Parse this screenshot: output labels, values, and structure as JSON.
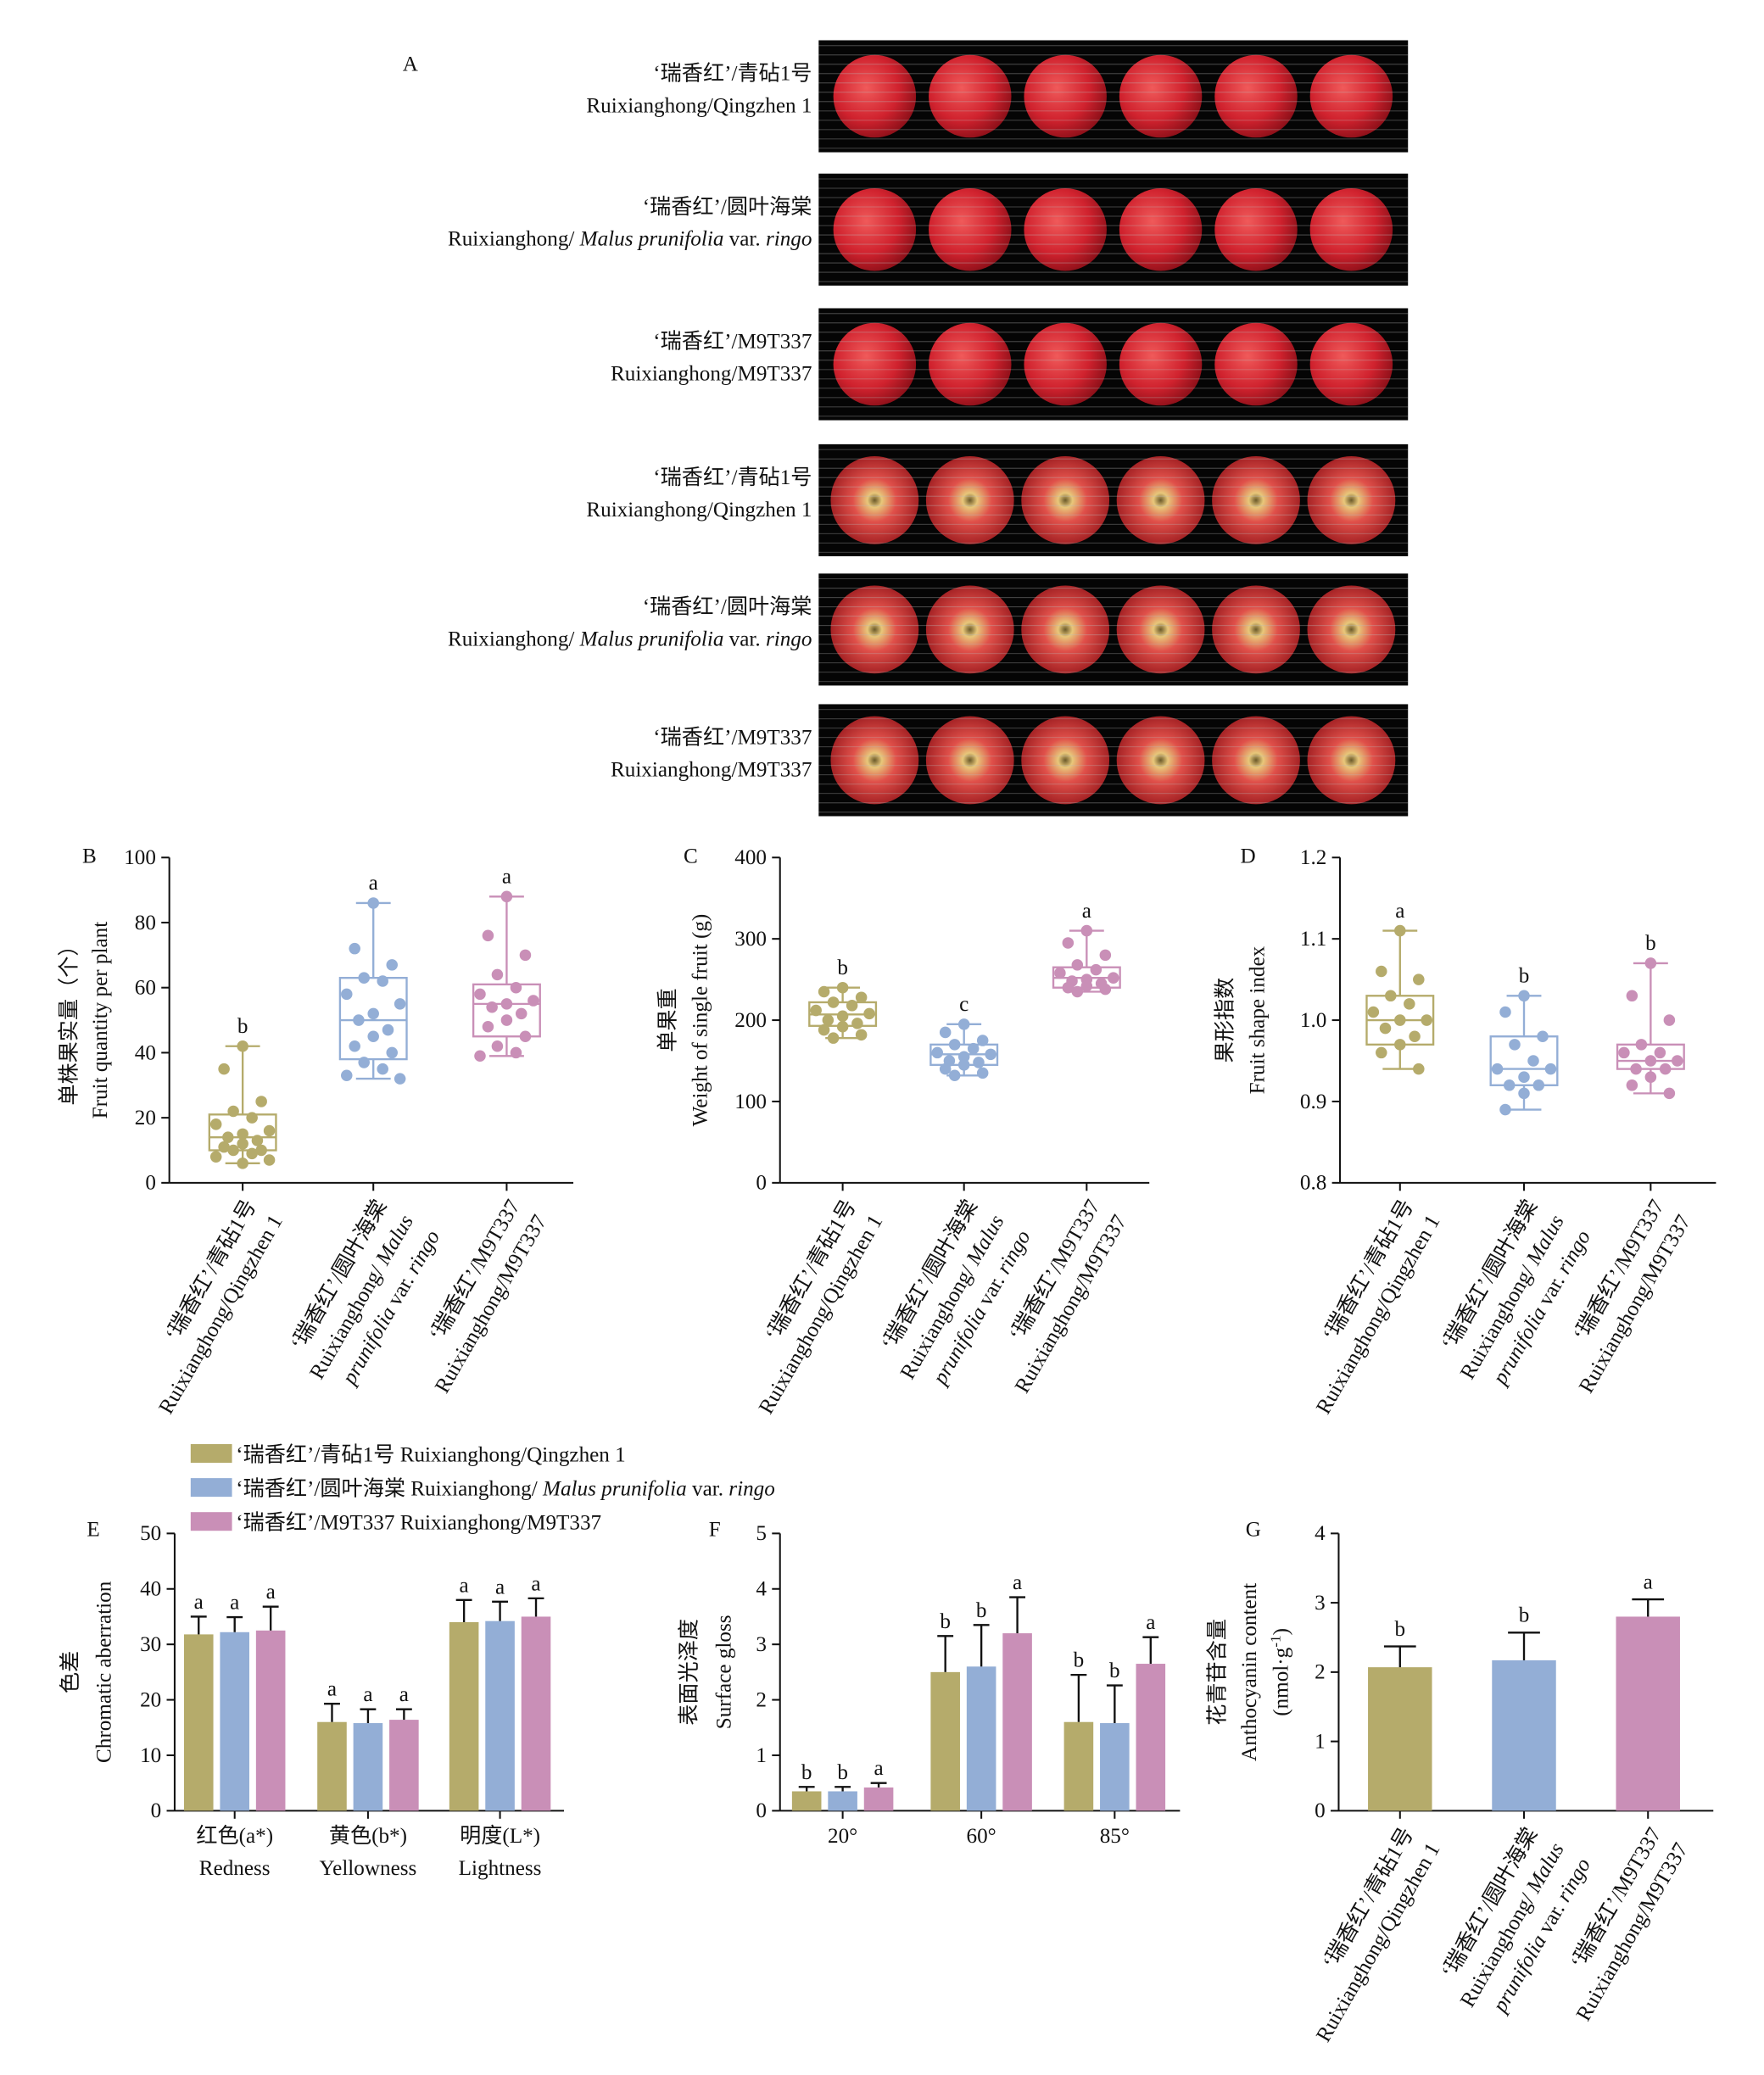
{
  "panel_a": {
    "label": "A",
    "rows": [
      {
        "line1": "‘瑞香红’/青砧1号",
        "line2": "Ruixianghong/Qingzhen 1"
      },
      {
        "line1": "‘瑞香红’/圆叶海棠",
        "line2": [
          "Ruixianghong/ ",
          "Malus prunifolia",
          " var. ",
          "ringo"
        ]
      },
      {
        "line1": "‘瑞香红’/M9T337",
        "line2": "Ruixianghong/M9T337"
      },
      {
        "line1": "‘瑞香红’/青砧1号",
        "line2": "Ruixianghong/Qingzhen 1"
      },
      {
        "line1": "‘瑞香红’/圆叶海棠",
        "line2": [
          "Ruixianghong/ ",
          "Malus prunifolia",
          " var. ",
          "ringo"
        ]
      },
      {
        "line1": "‘瑞香红’/M9T337",
        "line2": "Ruixianghong/M9T337"
      }
    ]
  },
  "chart_data": [
    {
      "type": "box",
      "panel": "B",
      "y_label": [
        "单株果实量（个）",
        "Fruit quantity per plant"
      ],
      "ylim": [
        0,
        100
      ],
      "yticks": [
        0,
        20,
        40,
        60,
        80,
        100
      ],
      "categories": [
        [
          "‘瑞香红’/青砧1号",
          "Ruixianghong/Qingzhen 1"
        ],
        [
          "‘瑞香红’/圆叶海棠",
          [
            "Ruixianghong/ ",
            "Malus"
          ],
          [
            "",
            "prunifolia",
            " var. ",
            "ringo"
          ]
        ],
        [
          "‘瑞香红’/M9T337",
          "Ruixianghong/M9T337"
        ]
      ],
      "groups": [
        {
          "color": "#b5ab6b",
          "min": 6,
          "q1": 10,
          "median": 14,
          "q3": 21,
          "max": 42,
          "letter": "b",
          "points": [
            42,
            35,
            25,
            22,
            20,
            18,
            16,
            15,
            14,
            13,
            12,
            11,
            10,
            10,
            9,
            8,
            7,
            6
          ]
        },
        {
          "color": "#93aed6",
          "min": 32,
          "q1": 38,
          "median": 50,
          "q3": 63,
          "max": 86,
          "letter": "a",
          "points": [
            86,
            72,
            67,
            63,
            62,
            58,
            55,
            52,
            50,
            47,
            45,
            42,
            40,
            37,
            35,
            33,
            32
          ]
        },
        {
          "color": "#c98fb7",
          "min": 39,
          "q1": 45,
          "median": 55,
          "q3": 61,
          "max": 88,
          "letter": "a",
          "points": [
            88,
            76,
            70,
            64,
            60,
            58,
            56,
            55,
            54,
            52,
            50,
            48,
            45,
            42,
            40,
            39
          ]
        }
      ]
    },
    {
      "type": "box",
      "panel": "C",
      "y_label": [
        "单果重",
        "Weight of single fruit (g)"
      ],
      "ylim": [
        0,
        400
      ],
      "yticks": [
        0,
        100,
        200,
        300,
        400
      ],
      "categories": [
        [
          "‘瑞香红’/青砧1号",
          "Ruixianghong/Qingzhen 1"
        ],
        [
          "‘瑞香红’/圆叶海棠",
          [
            "Ruixianghong/ ",
            "Malus"
          ],
          [
            "",
            "prunifolia",
            " var. ",
            "ringo"
          ]
        ],
        [
          "‘瑞香红’/M9T337",
          "Ruixianghong/M9T337"
        ]
      ],
      "groups": [
        {
          "color": "#b5ab6b",
          "min": 178,
          "q1": 193,
          "median": 207,
          "q3": 222,
          "max": 240,
          "letter": "b",
          "points": [
            240,
            235,
            228,
            222,
            218,
            212,
            208,
            205,
            200,
            196,
            192,
            188,
            182,
            178
          ]
        },
        {
          "color": "#93aed6",
          "min": 132,
          "q1": 145,
          "median": 158,
          "q3": 170,
          "max": 195,
          "letter": "c",
          "points": [
            195,
            185,
            175,
            170,
            165,
            160,
            158,
            155,
            150,
            148,
            145,
            140,
            135,
            132
          ]
        },
        {
          "color": "#c98fb7",
          "min": 235,
          "q1": 240,
          "median": 252,
          "q3": 265,
          "max": 310,
          "letter": "a",
          "points": [
            310,
            295,
            280,
            268,
            262,
            258,
            252,
            250,
            248,
            245,
            242,
            240,
            238,
            235
          ]
        }
      ]
    },
    {
      "type": "box",
      "panel": "D",
      "y_label": [
        "果形指数",
        "Fruit shape index"
      ],
      "ylim": [
        0.8,
        1.2
      ],
      "yticks": [
        0.8,
        0.9,
        {
          "value": 1.0,
          "label": "1.0"
        },
        1.1,
        1.2
      ],
      "categories": [
        [
          "‘瑞香红’/青砧1号",
          "Ruixianghong/Qingzhen 1"
        ],
        [
          "‘瑞香红’/圆叶海棠",
          [
            "Ruixianghong/ ",
            "Malus"
          ],
          [
            "",
            "prunifolia",
            " var. ",
            "ringo"
          ]
        ],
        [
          "‘瑞香红’/M9T337",
          "Ruixianghong/M9T337"
        ]
      ],
      "groups": [
        {
          "color": "#b5ab6b",
          "min": 0.94,
          "q1": 0.97,
          "median": 1.0,
          "q3": 1.03,
          "max": 1.11,
          "letter": "a",
          "points": [
            1.11,
            1.06,
            1.05,
            1.03,
            1.02,
            1.01,
            1.0,
            1.0,
            0.99,
            0.98,
            0.97,
            0.96,
            0.94
          ]
        },
        {
          "color": "#93aed6",
          "min": 0.89,
          "q1": 0.92,
          "median": 0.94,
          "q3": 0.98,
          "max": 1.03,
          "letter": "b",
          "points": [
            1.03,
            1.01,
            0.98,
            0.97,
            0.95,
            0.94,
            0.94,
            0.93,
            0.92,
            0.92,
            0.91,
            0.89
          ]
        },
        {
          "color": "#c98fb7",
          "min": 0.91,
          "q1": 0.94,
          "median": 0.95,
          "q3": 0.97,
          "max": 1.07,
          "letter": "b",
          "points": [
            1.07,
            1.03,
            1.0,
            0.97,
            0.96,
            0.96,
            0.95,
            0.95,
            0.94,
            0.94,
            0.93,
            0.92,
            0.91
          ]
        }
      ]
    },
    {
      "type": "grouped_bar",
      "panel": "E",
      "y_label": [
        "色差",
        "Chromatic aberration"
      ],
      "ylim": [
        0,
        50
      ],
      "yticks": [
        0,
        10,
        20,
        30,
        40,
        50
      ],
      "categories": [
        "红色(a*)",
        "黄色(b*)",
        "明度(L*)"
      ],
      "category_subtitles": [
        "Redness",
        "Yellowness",
        "Lightness"
      ],
      "series": [
        {
          "name": [
            "‘瑞香红’/青砧1号 Ruixianghong/Qingzhen 1"
          ],
          "color": "#b5ab6b",
          "values": [
            31.8,
            16.0,
            34.0
          ],
          "errors": [
            3.2,
            3.3,
            4.0
          ],
          "letters": [
            "a",
            "a",
            "a"
          ]
        },
        {
          "name": [
            "‘瑞香红’/圆叶海棠 Ruixianghong/ ",
            "Malus prunifolia",
            " var. ",
            "ringo"
          ],
          "color": "#93aed6",
          "values": [
            32.2,
            15.8,
            34.2
          ],
          "errors": [
            2.7,
            2.5,
            3.5
          ],
          "letters": [
            "a",
            "a",
            "a"
          ]
        },
        {
          "name": [
            "‘瑞香红’/M9T337 Ruixianghong/M9T337"
          ],
          "color": "#c98fb7",
          "values": [
            32.5,
            16.4,
            35.0
          ],
          "errors": [
            4.3,
            1.9,
            3.3
          ],
          "letters": [
            "a",
            "a",
            "a"
          ]
        }
      ]
    },
    {
      "type": "grouped_bar",
      "panel": "F",
      "y_label": [
        "表面光泽度",
        "Surface gloss"
      ],
      "ylim": [
        0,
        5
      ],
      "yticks": [
        0,
        1,
        2,
        3,
        4,
        5
      ],
      "categories": [
        "20°",
        "60°",
        "85°"
      ],
      "series": [
        {
          "color": "#b5ab6b",
          "values": [
            0.35,
            2.5,
            1.6
          ],
          "errors": [
            0.08,
            0.65,
            0.85
          ],
          "letters": [
            "b",
            "b",
            "b"
          ]
        },
        {
          "color": "#93aed6",
          "values": [
            0.35,
            2.6,
            1.58
          ],
          "errors": [
            0.08,
            0.75,
            0.68
          ],
          "letters": [
            "b",
            "b",
            "b"
          ]
        },
        {
          "color": "#c98fb7",
          "values": [
            0.42,
            3.2,
            2.65
          ],
          "errors": [
            0.08,
            0.65,
            0.48
          ],
          "letters": [
            "a",
            "a",
            "a"
          ]
        }
      ]
    },
    {
      "type": "bar",
      "panel": "G",
      "y_label": [
        "花青苷含量",
        "Anthocyanin content",
        [
          "(nmol·g",
          "-1",
          ")"
        ]
      ],
      "ylim": [
        0,
        4
      ],
      "yticks": [
        0,
        1,
        2,
        3,
        4
      ],
      "categories": [
        [
          "‘瑞香红’/青砧1号",
          "Ruixianghong/Qingzhen 1"
        ],
        [
          "‘瑞香红’/圆叶海棠",
          [
            "Ruixianghong/ ",
            "Malus"
          ],
          [
            "",
            "prunifolia",
            " var. ",
            "ringo"
          ]
        ],
        [
          "‘瑞香红’/M9T337",
          "Ruixianghong/M9T337"
        ]
      ],
      "values": [
        2.07,
        2.17,
        2.8
      ],
      "errors": [
        0.3,
        0.4,
        0.25
      ],
      "letters": [
        "b",
        "b",
        "a"
      ],
      "colors": [
        "#b5ab6b",
        "#93aed6",
        "#c98fb7"
      ]
    }
  ]
}
